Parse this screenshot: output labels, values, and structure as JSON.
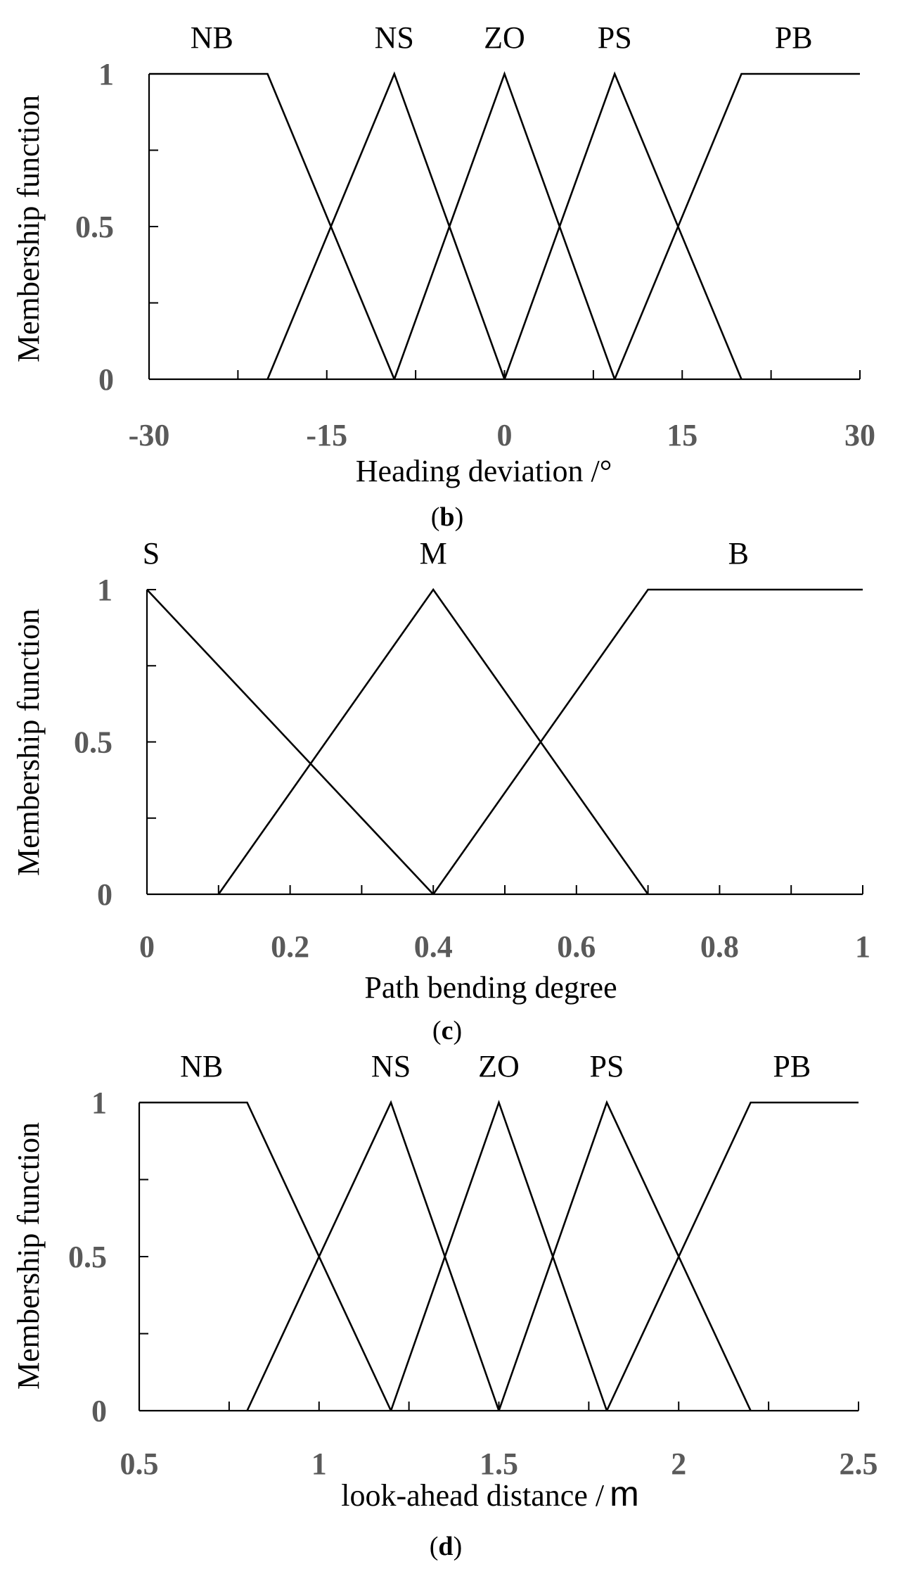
{
  "chart_data": [
    {
      "type": "line",
      "caption": "(b)",
      "caption_letter": "b",
      "xlabel": "Heading deviation /°",
      "ylabel": "Membership function",
      "xlim": [
        -30,
        30
      ],
      "ylim": [
        0,
        1
      ],
      "xticks": [
        -30,
        -15,
        0,
        15,
        30
      ],
      "xtick_labels": [
        "-30",
        "-15",
        "0",
        "15",
        "30"
      ],
      "xminor_ticks": [
        -22.5,
        -7.5,
        7.5,
        22.5
      ],
      "yticks": [
        0,
        0.5,
        1
      ],
      "ytick_labels": [
        "0",
        "0.5",
        "1"
      ],
      "yminor_ticks": [
        0.25,
        0.75
      ],
      "grid": false,
      "series": [
        {
          "name": "NB",
          "x": [
            -30,
            -20,
            -9.3
          ],
          "y": [
            1,
            1,
            0
          ]
        },
        {
          "name": "NS",
          "x": [
            -20,
            -9.3,
            0
          ],
          "y": [
            0,
            1,
            0
          ]
        },
        {
          "name": "ZO",
          "x": [
            -9.3,
            0,
            9.3
          ],
          "y": [
            0,
            1,
            0
          ]
        },
        {
          "name": "PS",
          "x": [
            0,
            9.3,
            20
          ],
          "y": [
            0,
            1,
            0
          ]
        },
        {
          "name": "PB",
          "x": [
            9.3,
            20,
            30
          ],
          "y": [
            0,
            1,
            1
          ]
        }
      ]
    },
    {
      "type": "line",
      "caption": "(c)",
      "caption_letter": "c",
      "xlabel": "Path bending degree",
      "ylabel": "Membership function",
      "xlim": [
        0,
        1
      ],
      "ylim": [
        0,
        1
      ],
      "xticks": [
        0,
        0.2,
        0.4,
        0.6,
        0.8,
        1
      ],
      "xtick_labels": [
        "0",
        "0.2",
        "0.4",
        "0.6",
        "0.8",
        "1"
      ],
      "xminor_ticks": [
        0.1,
        0.3,
        0.5,
        0.7,
        0.9
      ],
      "yticks": [
        0,
        0.5,
        1
      ],
      "ytick_labels": [
        "0",
        "0.5",
        "1"
      ],
      "yminor_ticks": [
        0.25,
        0.75
      ],
      "grid": false,
      "series": [
        {
          "name": "S",
          "x": [
            0,
            0.4
          ],
          "y": [
            1,
            0
          ]
        },
        {
          "name": "M",
          "x": [
            0.1,
            0.4,
            0.7
          ],
          "y": [
            0,
            1,
            0
          ]
        },
        {
          "name": "B",
          "x": [
            0.4,
            0.7,
            1
          ],
          "y": [
            0,
            1,
            1
          ]
        }
      ]
    },
    {
      "type": "line",
      "caption": "(d)",
      "caption_letter": "d",
      "xlabel_text": "look-ahead distance /",
      "xlabel_unit": "m",
      "ylabel": "Membership function",
      "xlim": [
        0.5,
        2.5
      ],
      "ylim": [
        0,
        1
      ],
      "xticks": [
        0.5,
        1,
        1.5,
        2,
        2.5
      ],
      "xtick_labels": [
        "0.5",
        "1",
        "1.5",
        "2",
        "2.5"
      ],
      "xminor_ticks": [
        0.75,
        1.25,
        1.75,
        2.25
      ],
      "yticks": [
        0,
        0.5,
        1
      ],
      "ytick_labels": [
        "0",
        "0.5",
        "1"
      ],
      "yminor_ticks": [
        0.25,
        0.75
      ],
      "grid": false,
      "series": [
        {
          "name": "NB",
          "x": [
            0.5,
            0.8,
            1.2
          ],
          "y": [
            1,
            1,
            0
          ]
        },
        {
          "name": "NS",
          "x": [
            0.8,
            1.2,
            1.5
          ],
          "y": [
            0,
            1,
            0
          ]
        },
        {
          "name": "ZO",
          "x": [
            1.2,
            1.5,
            1.8
          ],
          "y": [
            0,
            1,
            0
          ]
        },
        {
          "name": "PS",
          "x": [
            1.5,
            1.8,
            2.2
          ],
          "y": [
            0,
            1,
            0
          ]
        },
        {
          "name": "PB",
          "x": [
            1.8,
            2.2,
            2.5
          ],
          "y": [
            0,
            1,
            1
          ]
        }
      ]
    }
  ]
}
